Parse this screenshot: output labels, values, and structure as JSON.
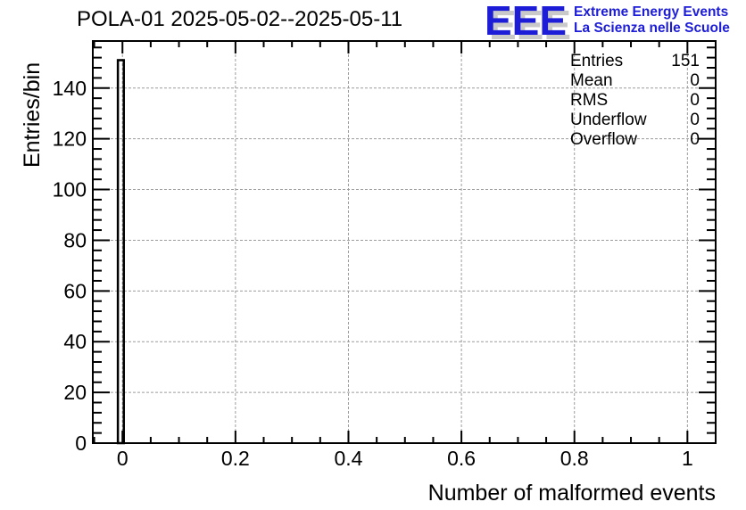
{
  "title": "POLA-01 2025-05-02--2025-05-11",
  "logo": {
    "acronym": "EEE",
    "line1": "Extreme Energy Events",
    "line2": "La Scienza nelle Scuole",
    "color": "#1d1dd8",
    "shadow_color": "#c9c9c9"
  },
  "stats": {
    "rows": [
      {
        "label": "Entries",
        "value": "151"
      },
      {
        "label": "Mean",
        "value": "0"
      },
      {
        "label": "RMS",
        "value": "0"
      },
      {
        "label": "Underflow",
        "value": "0"
      },
      {
        "label": "Overflow",
        "value": "0"
      }
    ]
  },
  "chart_data": {
    "type": "bar",
    "title": "POLA-01 2025-05-02--2025-05-11",
    "xlabel": "Number of malformed events",
    "ylabel": "Entries/bin",
    "xlim": [
      -0.0525,
      1.05
    ],
    "ylim": [
      0,
      158.55
    ],
    "x_major_ticks": [
      {
        "v": 0,
        "label": "0"
      },
      {
        "v": 0.2,
        "label": "0.2"
      },
      {
        "v": 0.4,
        "label": "0.4"
      },
      {
        "v": 0.6,
        "label": "0.6"
      },
      {
        "v": 0.8,
        "label": "0.8"
      },
      {
        "v": 1,
        "label": "1"
      }
    ],
    "x_minor_step": 0.05,
    "y_major_ticks": [
      {
        "v": 0,
        "label": "0"
      },
      {
        "v": 20,
        "label": "20"
      },
      {
        "v": 40,
        "label": "40"
      },
      {
        "v": 60,
        "label": "60"
      },
      {
        "v": 80,
        "label": "80"
      },
      {
        "v": 100,
        "label": "100"
      },
      {
        "v": 120,
        "label": "120"
      },
      {
        "v": 140,
        "label": "140"
      }
    ],
    "y_minor_step": 4,
    "grid": true,
    "grid_color": "#9c9c9c",
    "axis_color": "#000000",
    "bars": [
      {
        "x_center": -0.00286,
        "bin_width": 0.010476,
        "count": 151
      }
    ],
    "bar_style": {
      "stroke": "#000000",
      "fill": "none",
      "stroke_width": 2.5
    }
  }
}
